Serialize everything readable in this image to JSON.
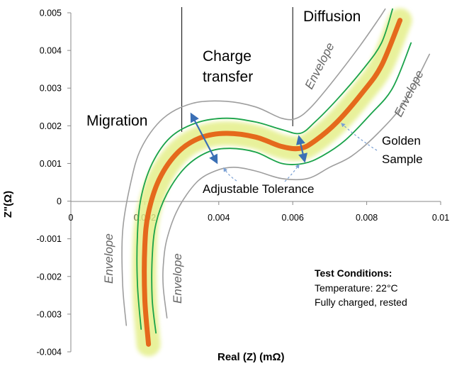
{
  "chart_data": {
    "type": "line",
    "xlabel": "Real (Z) (mΩ)",
    "ylabel": "Z\"(Ω)",
    "xlim": [
      0,
      0.01
    ],
    "ylim": [
      -0.004,
      0.005
    ],
    "x_ticks": [
      "0",
      "0.002",
      "0.004",
      "0.006",
      "0.008",
      "0.01"
    ],
    "y_ticks": [
      "0.005",
      "0.004",
      "0.003",
      "0.002",
      "0.001",
      "0",
      "-0.001",
      "-0.002",
      "-0.003",
      "-0.004"
    ],
    "grid": false,
    "series": [
      {
        "name": "Golden Sample",
        "color": "#e5691c",
        "role": "center",
        "points": [
          [
            0.0021,
            -0.0038
          ],
          [
            0.002,
            -0.0026
          ],
          [
            0.002,
            -0.0012
          ],
          [
            0.0021,
            -0.0003
          ],
          [
            0.0024,
            0.0006
          ],
          [
            0.0029,
            0.0013
          ],
          [
            0.0035,
            0.00168
          ],
          [
            0.0042,
            0.0018
          ],
          [
            0.005,
            0.0017
          ],
          [
            0.0057,
            0.00145
          ],
          [
            0.0062,
            0.0014
          ],
          [
            0.0066,
            0.0016
          ],
          [
            0.0072,
            0.0021
          ],
          [
            0.0079,
            0.0029
          ],
          [
            0.0084,
            0.0036
          ],
          [
            0.0089,
            0.0048
          ]
        ]
      },
      {
        "name": "Upper tolerance",
        "color": "#1aa34a",
        "role": "tolerance",
        "points": [
          [
            0.0019,
            -0.0034
          ],
          [
            0.0018,
            -0.0022
          ],
          [
            0.0018,
            -0.0009
          ],
          [
            0.0019,
            0.0001
          ],
          [
            0.0022,
            0.001
          ],
          [
            0.0027,
            0.0017
          ],
          [
            0.0034,
            0.00208
          ],
          [
            0.0042,
            0.0022
          ],
          [
            0.005,
            0.0021
          ],
          [
            0.0057,
            0.0019
          ],
          [
            0.0062,
            0.0018
          ],
          [
            0.0066,
            0.0021
          ],
          [
            0.0072,
            0.0027
          ],
          [
            0.0079,
            0.0035
          ],
          [
            0.0084,
            0.0042
          ],
          [
            0.0087,
            0.0051
          ]
        ]
      },
      {
        "name": "Lower tolerance",
        "color": "#1aa34a",
        "role": "tolerance",
        "points": [
          [
            0.0023,
            -0.0035
          ],
          [
            0.0022,
            -0.0026
          ],
          [
            0.0022,
            -0.0015
          ],
          [
            0.0023,
            -0.0006
          ],
          [
            0.0026,
            0.0002
          ],
          [
            0.0031,
            0.0009
          ],
          [
            0.0037,
            0.0013
          ],
          [
            0.0043,
            0.0014
          ],
          [
            0.005,
            0.0013
          ],
          [
            0.0057,
            0.001
          ],
          [
            0.0063,
            0.001
          ],
          [
            0.0068,
            0.0012
          ],
          [
            0.0074,
            0.0016
          ],
          [
            0.0081,
            0.0023
          ],
          [
            0.0087,
            0.003
          ],
          [
            0.0092,
            0.0042
          ]
        ]
      },
      {
        "name": "Upper envelope",
        "color": "#9e9e9e",
        "role": "envelope",
        "points": [
          [
            0.0015,
            -0.0033
          ],
          [
            0.0014,
            -0.0022
          ],
          [
            0.0014,
            -0.0008
          ],
          [
            0.0016,
            0.0004
          ],
          [
            0.0019,
            0.0014
          ],
          [
            0.0025,
            0.0022
          ],
          [
            0.0033,
            0.0026
          ],
          [
            0.0042,
            0.00265
          ],
          [
            0.005,
            0.0025
          ],
          [
            0.0057,
            0.0022
          ],
          [
            0.0061,
            0.0022
          ],
          [
            0.0065,
            0.0025
          ],
          [
            0.0071,
            0.0032
          ],
          [
            0.0078,
            0.0041
          ],
          [
            0.0083,
            0.0048
          ],
          [
            0.0085,
            0.0051
          ]
        ]
      },
      {
        "name": "Lower envelope",
        "color": "#9e9e9e",
        "role": "envelope",
        "points": [
          [
            0.0026,
            -0.0031
          ],
          [
            0.0025,
            -0.0023
          ],
          [
            0.0025,
            -0.0017
          ],
          [
            0.0026,
            -0.001
          ],
          [
            0.0029,
            -0.0002
          ],
          [
            0.0034,
            0.0005
          ],
          [
            0.0039,
            0.0008
          ],
          [
            0.0044,
            0.0009
          ],
          [
            0.005,
            0.0008
          ],
          [
            0.0057,
            0.0006
          ],
          [
            0.0064,
            0.0006
          ],
          [
            0.007,
            0.0009
          ],
          [
            0.0076,
            0.0012
          ],
          [
            0.0083,
            0.0018
          ],
          [
            0.009,
            0.0026
          ],
          [
            0.0097,
            0.0039
          ]
        ]
      }
    ],
    "annotations": {
      "migration": "Migration",
      "charge_transfer_line1": "Charge",
      "charge_transfer_line2": "transfer",
      "diffusion": "Diffusion",
      "envelope": "Envelope",
      "adjustable_tolerance": "Adjustable Tolerance",
      "golden_sample_line1": "Golden",
      "golden_sample_line2": "Sample"
    },
    "dividers_x": [
      0.003,
      0.006
    ]
  },
  "test_conditions": {
    "title": "Test Conditions:",
    "line1": "Temperature:  22°C",
    "line2": "Fully charged, rested"
  },
  "colors": {
    "golden": "#e5691c",
    "tolerance": "#1aa34a",
    "band": "#e4ef8a",
    "envelope": "#9e9e9e",
    "arrow": "#3a6fb5",
    "axis": "#8a8a8a"
  }
}
